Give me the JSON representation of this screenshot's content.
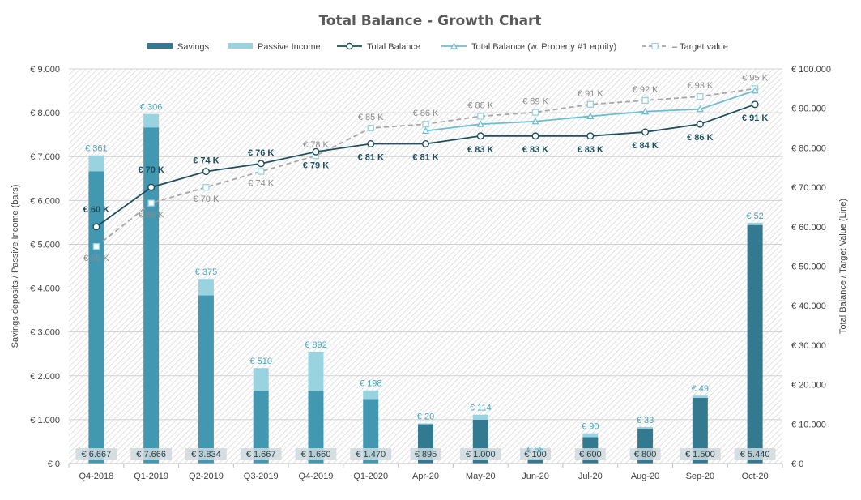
{
  "chart_data": {
    "type": "bar",
    "title": "Total Balance - Growth Chart",
    "ylabel": "Savings deposits / Passive Income (bars)",
    "y2label": "Total Balance / Target Value (Line)",
    "ylim": [
      0,
      9000
    ],
    "y2lim": [
      0,
      100000
    ],
    "y_ticks": [
      "€ 0",
      "€ 1.000",
      "€ 2.000",
      "€ 3.000",
      "€ 4.000",
      "€ 5.000",
      "€ 6.000",
      "€ 7.000",
      "€ 8.000",
      "€ 9.000"
    ],
    "y2_ticks": [
      "€ 0",
      "€ 10.000",
      "€ 20.000",
      "€ 30.000",
      "€ 40.000",
      "€ 50.000",
      "€ 60.000",
      "€ 70.000",
      "€ 80.000",
      "€ 90.000",
      "€ 100.000"
    ],
    "categories": [
      "Q4-2018",
      "Q1-2019",
      "Q2-2019",
      "Q3-2019",
      "Q4-2019",
      "Q1-2020",
      "Apr-20",
      "May-20",
      "Jun-20",
      "Jul-20",
      "Aug-20",
      "Sep-20",
      "Oct-20"
    ],
    "grid": true,
    "legend_position": "top",
    "legend": [
      "Savings",
      "Passive Income",
      "Total Balance",
      "Total Balance (w. Property #1 equity)",
      "– Target value"
    ],
    "colors": {
      "savings_quarter": "#4398b1",
      "savings_month": "#33798f",
      "passive": "#9ad3e0",
      "total": "#1f4e5e",
      "property": "#6dbdd0",
      "target": "#a6a6a6",
      "title": "#595959"
    },
    "series": [
      {
        "name": "Savings",
        "axis": "left",
        "values": [
          6667,
          7666,
          3834,
          1667,
          1660,
          1470,
          895,
          1000,
          100,
          600,
          800,
          1500,
          5440
        ],
        "labels": [
          "€ 6.667",
          "€ 7.666",
          "€ 3.834",
          "€ 1.667",
          "€ 1.660",
          "€ 1.470",
          "€ 895",
          "€ 1.000",
          "€ 100",
          "€ 600",
          "€ 800",
          "€ 1.500",
          "€ 5.440"
        ]
      },
      {
        "name": "Passive Income",
        "axis": "left",
        "values": [
          361,
          306,
          375,
          510,
          892,
          198,
          20,
          114,
          58,
          90,
          33,
          49,
          52
        ],
        "labels": [
          "€ 361",
          "€ 306",
          "€ 375",
          "€ 510",
          "€ 892",
          "€ 198",
          "€ 20",
          "€ 114",
          "€ 58",
          "€ 90",
          "€ 33",
          "€ 49",
          "€ 52"
        ]
      },
      {
        "name": "Total Balance",
        "axis": "right",
        "values": [
          60000,
          70000,
          74000,
          76000,
          79000,
          81000,
          81000,
          83000,
          83000,
          83000,
          84000,
          86000,
          91000
        ],
        "labels": [
          "€ 60 K",
          "€ 70 K",
          "€ 74 K",
          "€ 76 K",
          "€ 79 K",
          "€ 81 K",
          "€ 81 K",
          "€ 83 K",
          "€ 83 K",
          "€ 83 K",
          "€ 84 K",
          "€ 86 K",
          "€ 91 K"
        ]
      },
      {
        "name": "Total Balance (w. Property #1 equity)",
        "axis": "right",
        "values": [
          null,
          null,
          null,
          null,
          null,
          null,
          84300,
          86000,
          86700,
          88000,
          89200,
          89800,
          94500
        ]
      },
      {
        "name": "– Target value",
        "axis": "right",
        "values": [
          55000,
          66000,
          70000,
          74000,
          78000,
          85000,
          86000,
          88000,
          89000,
          91000,
          92000,
          93000,
          95000
        ],
        "labels": [
          "€ 55 K",
          "€ 66 K",
          "€ 70 K",
          "€ 74 K",
          "€ 78 K",
          "€ 85 K",
          "€ 86 K",
          "€ 88 K",
          "€ 89 K",
          "€ 91 K",
          "€ 92 K",
          "€ 93 K",
          "€ 95 K"
        ]
      }
    ]
  }
}
